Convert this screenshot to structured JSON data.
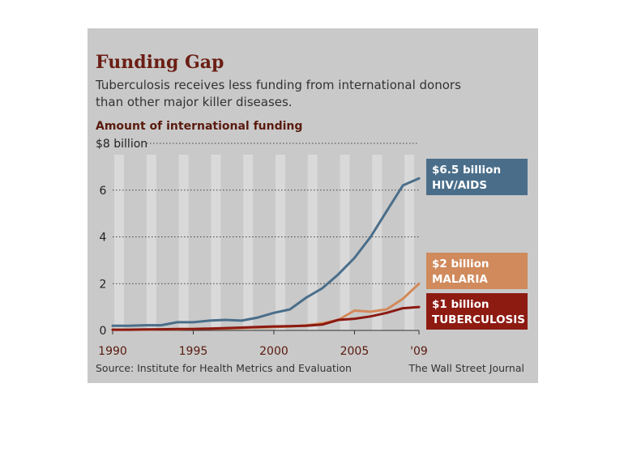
{
  "chart_data": {
    "type": "line",
    "title": "Funding Gap",
    "subtitle_lines": [
      "Tuberculosis receives less funding from international donors",
      "than other major killer diseases."
    ],
    "ylabel": "Amount of international funding",
    "top_tick_label": "$8 billion",
    "y_tick_labels": [
      "0",
      "2",
      "4",
      "6"
    ],
    "x_tick_labels": [
      "1990",
      "1995",
      "2000",
      "2005",
      "'09"
    ],
    "ylim": [
      0,
      8
    ],
    "xlim": [
      1990,
      2009
    ],
    "x": [
      1990,
      1991,
      1992,
      1993,
      1994,
      1995,
      1996,
      1997,
      1998,
      1999,
      2000,
      2001,
      2002,
      2003,
      2004,
      2005,
      2006,
      2007,
      2008,
      2009
    ],
    "series": [
      {
        "name": "HIV/AIDS",
        "color": "#4a6e8a",
        "end_label": "$6.5 billion",
        "values": [
          0.2,
          0.2,
          0.22,
          0.22,
          0.35,
          0.35,
          0.42,
          0.45,
          0.42,
          0.55,
          0.75,
          0.9,
          1.4,
          1.8,
          2.4,
          3.1,
          4.0,
          5.1,
          6.2,
          6.5
        ]
      },
      {
        "name": "MALARIA",
        "color": "#d4895a",
        "end_label": "$2 billion",
        "values": [
          0.03,
          0.03,
          0.03,
          0.04,
          0.05,
          0.06,
          0.07,
          0.08,
          0.1,
          0.12,
          0.15,
          0.17,
          0.22,
          0.3,
          0.45,
          0.85,
          0.8,
          0.9,
          1.35,
          2.0
        ]
      },
      {
        "name": "TUBERCULOSIS",
        "color": "#8b1a12",
        "end_label": "$1 billion",
        "values": [
          0.03,
          0.03,
          0.04,
          0.05,
          0.06,
          0.06,
          0.08,
          0.1,
          0.12,
          0.15,
          0.17,
          0.18,
          0.2,
          0.25,
          0.45,
          0.5,
          0.6,
          0.75,
          0.95,
          1.0
        ]
      }
    ],
    "grid": true
  },
  "footer": {
    "source": "Source: Institute for Health Metrics and Evaluation",
    "publisher": "The Wall Street Journal"
  }
}
